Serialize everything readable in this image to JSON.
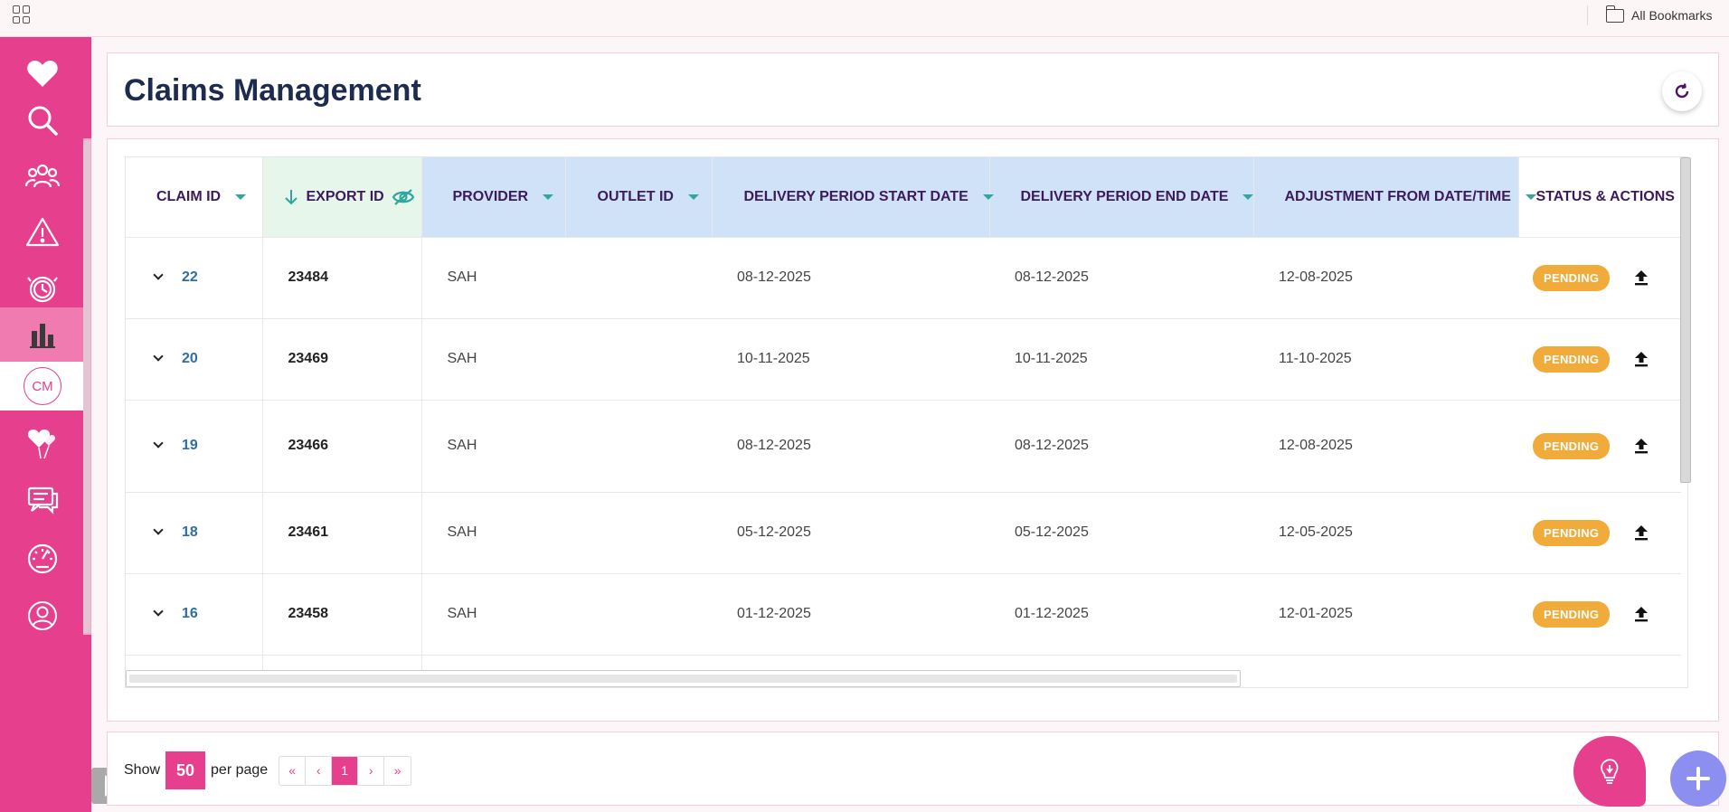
{
  "bookmarks": {
    "label": "All Bookmarks"
  },
  "sidebar": {
    "items": [
      {
        "name": "favorites",
        "icon": "heart-icon"
      },
      {
        "name": "search",
        "icon": "search-icon"
      },
      {
        "name": "users",
        "icon": "users-group-icon"
      },
      {
        "name": "alerts",
        "icon": "warning-icon"
      },
      {
        "name": "history",
        "icon": "clock-history-icon"
      },
      {
        "name": "reports",
        "icon": "bar-chart-icon"
      },
      {
        "name": "claims",
        "icon": "cm-badge-icon",
        "label": "CM"
      },
      {
        "name": "care",
        "icon": "heart-balloons-icon"
      },
      {
        "name": "messages",
        "icon": "chat-icon"
      },
      {
        "name": "dashboard",
        "icon": "speedometer-icon"
      },
      {
        "name": "profile",
        "icon": "user-circle-icon"
      }
    ]
  },
  "header": {
    "title": "Claims Management"
  },
  "table": {
    "columns": [
      "CLAIM ID",
      "EXPORT ID",
      "PROVIDER",
      "OUTLET ID",
      "DELIVERY PERIOD START DATE",
      "DELIVERY PERIOD END DATE",
      "ADJUSTMENT FROM DATE/TIME",
      "STATUS & ACTIONS"
    ],
    "rows": [
      {
        "claim_id": "22",
        "export_id": "23484",
        "provider": "SAH",
        "outlet_id": "",
        "start": "08-12-2025",
        "end": "08-12-2025",
        "adjust": "12-08-2025",
        "status": "PENDING"
      },
      {
        "claim_id": "20",
        "export_id": "23469",
        "provider": "SAH",
        "outlet_id": "",
        "start": "10-11-2025",
        "end": "10-11-2025",
        "adjust": "11-10-2025",
        "status": "PENDING"
      },
      {
        "claim_id": "19",
        "export_id": "23466",
        "provider": "SAH",
        "outlet_id": "",
        "start": "08-12-2025",
        "end": "08-12-2025",
        "adjust": "12-08-2025",
        "status": "PENDING"
      },
      {
        "claim_id": "18",
        "export_id": "23461",
        "provider": "SAH",
        "outlet_id": "",
        "start": "05-12-2025",
        "end": "05-12-2025",
        "adjust": "12-05-2025",
        "status": "PENDING"
      },
      {
        "claim_id": "16",
        "export_id": "23458",
        "provider": "SAH",
        "outlet_id": "",
        "start": "01-12-2025",
        "end": "01-12-2025",
        "adjust": "12-01-2025",
        "status": "PENDING"
      }
    ]
  },
  "pager": {
    "show_label": "Show",
    "per_page_value": "50",
    "per_page_label": "per page",
    "first": "«",
    "prev": "‹",
    "current": "1",
    "next": "›",
    "last": "»"
  },
  "colors": {
    "brand": "#e63f8e",
    "pending": "#f0ab3a",
    "header_blue": "#cfe2f7",
    "header_green": "#e6f6ea",
    "fab": "#8d8ff0"
  }
}
